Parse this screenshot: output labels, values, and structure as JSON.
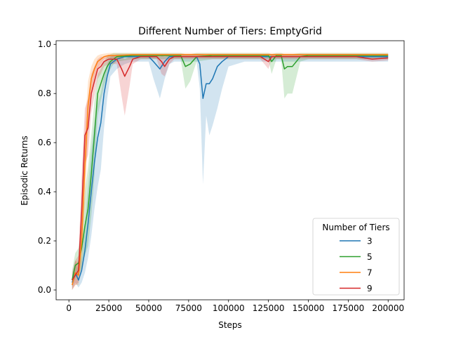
{
  "chart_data": {
    "type": "line",
    "title": "Different Number of Tiers: EmptyGrid",
    "xlabel": "Steps",
    "ylabel": "Episodic Returns",
    "xlim": [
      -8000,
      210000
    ],
    "ylim": [
      -0.04,
      1.015
    ],
    "xticks": [
      0,
      25000,
      50000,
      75000,
      100000,
      125000,
      150000,
      175000,
      200000
    ],
    "yticks": [
      0.0,
      0.2,
      0.4,
      0.6,
      0.8,
      1.0
    ],
    "xtick_labels": [
      "0",
      "25000",
      "50000",
      "75000",
      "100000",
      "125000",
      "150000",
      "175000",
      "200000"
    ],
    "ytick_labels": [
      "0.0",
      "0.2",
      "0.4",
      "0.6",
      "0.8",
      "1.0"
    ],
    "grid": false,
    "legend": {
      "title": "Number of Tiers",
      "location": "lower right"
    },
    "series": [
      {
        "name": "3",
        "color": "#1f77b4",
        "x": [
          2000,
          4000,
          6000,
          8000,
          10000,
          12000,
          14000,
          16000,
          18000,
          20000,
          22000,
          24000,
          26000,
          30000,
          35000,
          40000,
          45000,
          50000,
          53000,
          57000,
          60000,
          63000,
          66000,
          70000,
          75000,
          80000,
          82000,
          84000,
          86000,
          88000,
          90000,
          93000,
          96000,
          100000,
          110000,
          120000,
          130000,
          140000,
          150000,
          160000,
          170000,
          180000,
          190000,
          200000
        ],
        "y": [
          0.03,
          0.07,
          0.04,
          0.08,
          0.16,
          0.27,
          0.4,
          0.52,
          0.62,
          0.68,
          0.8,
          0.87,
          0.92,
          0.94,
          0.95,
          0.95,
          0.95,
          0.95,
          0.93,
          0.9,
          0.93,
          0.95,
          0.95,
          0.95,
          0.95,
          0.95,
          0.92,
          0.78,
          0.84,
          0.84,
          0.86,
          0.91,
          0.93,
          0.95,
          0.95,
          0.95,
          0.95,
          0.95,
          0.95,
          0.95,
          0.95,
          0.95,
          0.95,
          0.95
        ],
        "lower": [
          0.0,
          0.03,
          0.01,
          0.03,
          0.07,
          0.13,
          0.22,
          0.33,
          0.42,
          0.49,
          0.66,
          0.78,
          0.87,
          0.9,
          0.92,
          0.93,
          0.93,
          0.93,
          0.86,
          0.78,
          0.86,
          0.92,
          0.93,
          0.93,
          0.93,
          0.93,
          0.82,
          0.43,
          0.71,
          0.63,
          0.67,
          0.74,
          0.82,
          0.91,
          0.93,
          0.93,
          0.93,
          0.93,
          0.93,
          0.93,
          0.93,
          0.93,
          0.93,
          0.93
        ],
        "upper": [
          0.06,
          0.12,
          0.08,
          0.14,
          0.27,
          0.42,
          0.57,
          0.68,
          0.76,
          0.8,
          0.88,
          0.92,
          0.95,
          0.96,
          0.96,
          0.96,
          0.96,
          0.96,
          0.96,
          0.95,
          0.96,
          0.96,
          0.96,
          0.96,
          0.96,
          0.96,
          0.96,
          0.96,
          0.95,
          0.95,
          0.95,
          0.96,
          0.96,
          0.96,
          0.96,
          0.96,
          0.96,
          0.96,
          0.96,
          0.96,
          0.96,
          0.96,
          0.96,
          0.96
        ]
      },
      {
        "name": "5",
        "color": "#2ca02c",
        "x": [
          2000,
          4000,
          6000,
          8000,
          10000,
          12000,
          14000,
          16000,
          18000,
          20000,
          22000,
          24000,
          26000,
          28000,
          30000,
          40000,
          50000,
          60000,
          70000,
          73000,
          76000,
          80000,
          90000,
          100000,
          110000,
          120000,
          125000,
          127000,
          130000,
          133000,
          135000,
          137000,
          140000,
          145000,
          150000,
          160000,
          170000,
          180000,
          190000,
          200000
        ],
        "y": [
          0.04,
          0.1,
          0.11,
          0.17,
          0.26,
          0.33,
          0.47,
          0.63,
          0.8,
          0.84,
          0.88,
          0.91,
          0.93,
          0.94,
          0.95,
          0.955,
          0.955,
          0.955,
          0.955,
          0.91,
          0.92,
          0.95,
          0.955,
          0.955,
          0.955,
          0.955,
          0.955,
          0.93,
          0.955,
          0.955,
          0.9,
          0.91,
          0.91,
          0.95,
          0.955,
          0.955,
          0.955,
          0.955,
          0.955,
          0.955
        ],
        "lower": [
          0.01,
          0.05,
          0.06,
          0.09,
          0.14,
          0.18,
          0.3,
          0.46,
          0.71,
          0.77,
          0.83,
          0.87,
          0.9,
          0.92,
          0.93,
          0.94,
          0.94,
          0.94,
          0.94,
          0.82,
          0.85,
          0.93,
          0.94,
          0.94,
          0.94,
          0.94,
          0.94,
          0.88,
          0.94,
          0.94,
          0.78,
          0.8,
          0.8,
          0.93,
          0.94,
          0.94,
          0.94,
          0.94,
          0.94,
          0.94
        ],
        "upper": [
          0.08,
          0.15,
          0.17,
          0.26,
          0.4,
          0.5,
          0.63,
          0.77,
          0.88,
          0.9,
          0.93,
          0.95,
          0.96,
          0.965,
          0.965,
          0.965,
          0.965,
          0.965,
          0.965,
          0.96,
          0.96,
          0.965,
          0.965,
          0.965,
          0.965,
          0.965,
          0.965,
          0.96,
          0.965,
          0.965,
          0.96,
          0.96,
          0.96,
          0.965,
          0.965,
          0.965,
          0.965,
          0.965,
          0.965,
          0.965
        ]
      },
      {
        "name": "7",
        "color": "#ff7f0e",
        "x": [
          2000,
          4000,
          6000,
          8000,
          10000,
          12000,
          14000,
          16000,
          18000,
          20000,
          22000,
          25000,
          30000,
          40000,
          50000,
          60000,
          70000,
          80000,
          90000,
          100000,
          110000,
          120000,
          130000,
          140000,
          150000,
          160000,
          170000,
          180000,
          190000,
          200000
        ],
        "y": [
          0.02,
          0.07,
          0.06,
          0.2,
          0.5,
          0.75,
          0.86,
          0.9,
          0.93,
          0.94,
          0.95,
          0.955,
          0.955,
          0.958,
          0.958,
          0.958,
          0.958,
          0.958,
          0.958,
          0.958,
          0.958,
          0.958,
          0.958,
          0.958,
          0.958,
          0.958,
          0.958,
          0.958,
          0.958,
          0.958
        ],
        "lower": [
          0.0,
          0.02,
          0.02,
          0.1,
          0.34,
          0.63,
          0.8,
          0.86,
          0.9,
          0.92,
          0.94,
          0.945,
          0.945,
          0.95,
          0.95,
          0.95,
          0.95,
          0.95,
          0.95,
          0.95,
          0.95,
          0.95,
          0.95,
          0.95,
          0.95,
          0.95,
          0.95,
          0.95,
          0.95,
          0.95
        ],
        "upper": [
          0.05,
          0.12,
          0.11,
          0.32,
          0.66,
          0.85,
          0.91,
          0.94,
          0.955,
          0.96,
          0.962,
          0.965,
          0.965,
          0.965,
          0.965,
          0.965,
          0.965,
          0.965,
          0.965,
          0.965,
          0.965,
          0.965,
          0.965,
          0.965,
          0.965,
          0.965,
          0.965,
          0.965,
          0.965,
          0.965
        ]
      },
      {
        "name": "9",
        "color": "#d62728",
        "x": [
          2000,
          4000,
          6000,
          8000,
          10000,
          12000,
          14000,
          16000,
          18000,
          20000,
          22000,
          25000,
          30000,
          33000,
          35000,
          38000,
          40000,
          45000,
          50000,
          55000,
          58000,
          60000,
          63000,
          66000,
          70000,
          80000,
          90000,
          100000,
          110000,
          120000,
          125000,
          127000,
          130000,
          135000,
          140000,
          150000,
          160000,
          170000,
          180000,
          190000,
          200000
        ],
        "y": [
          0.04,
          0.06,
          0.08,
          0.32,
          0.63,
          0.66,
          0.8,
          0.85,
          0.9,
          0.91,
          0.93,
          0.94,
          0.94,
          0.9,
          0.87,
          0.91,
          0.94,
          0.95,
          0.95,
          0.95,
          0.93,
          0.91,
          0.94,
          0.95,
          0.95,
          0.95,
          0.95,
          0.95,
          0.95,
          0.95,
          0.93,
          0.95,
          0.95,
          0.95,
          0.95,
          0.95,
          0.95,
          0.95,
          0.95,
          0.94,
          0.945
        ],
        "lower": [
          0.0,
          0.02,
          0.03,
          0.17,
          0.51,
          0.55,
          0.72,
          0.79,
          0.86,
          0.88,
          0.91,
          0.92,
          0.92,
          0.79,
          0.71,
          0.83,
          0.92,
          0.94,
          0.94,
          0.94,
          0.88,
          0.87,
          0.92,
          0.94,
          0.94,
          0.94,
          0.94,
          0.94,
          0.94,
          0.94,
          0.9,
          0.94,
          0.94,
          0.94,
          0.94,
          0.94,
          0.94,
          0.94,
          0.94,
          0.93,
          0.935
        ],
        "upper": [
          0.07,
          0.12,
          0.14,
          0.47,
          0.74,
          0.78,
          0.88,
          0.91,
          0.94,
          0.95,
          0.95,
          0.955,
          0.955,
          0.95,
          0.94,
          0.95,
          0.955,
          0.958,
          0.958,
          0.958,
          0.955,
          0.95,
          0.955,
          0.958,
          0.958,
          0.958,
          0.958,
          0.958,
          0.958,
          0.958,
          0.95,
          0.958,
          0.958,
          0.958,
          0.958,
          0.958,
          0.958,
          0.958,
          0.958,
          0.95,
          0.955
        ]
      }
    ]
  }
}
